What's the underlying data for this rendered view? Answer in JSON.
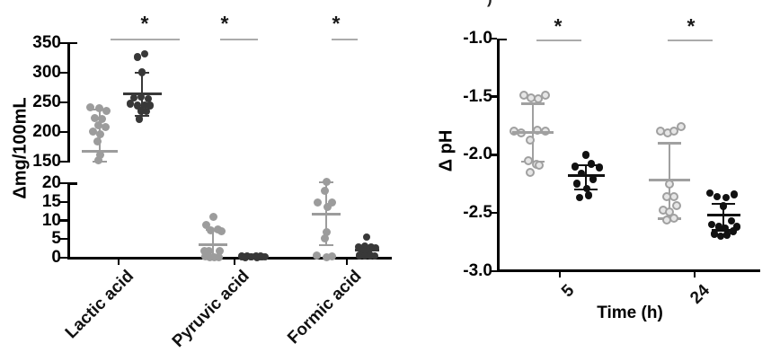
{
  "figure": {
    "cropped_label": ")",
    "background": "#ffffff",
    "axis_color": "#000000",
    "significance_bar_color": "#ababab"
  },
  "chart_data": [
    {
      "id": "organic-acids",
      "type": "scatter",
      "title": "",
      "ylabel": "Δmg/100mL",
      "xlabel": "",
      "y_axis_break": true,
      "y_upper_range": [
        150,
        350
      ],
      "y_lower_range": [
        0,
        20
      ],
      "y_tick_labels_upper": [
        "350",
        "300",
        "250",
        "200",
        "150"
      ],
      "y_tick_labels_lower": [
        "20",
        "15",
        "10",
        "5",
        "0"
      ],
      "categories": [
        "Lactic acid",
        "Pyruvic acid",
        "Formic acid"
      ],
      "grid": false,
      "legend": false,
      "significance": [
        {
          "label": "*",
          "between": "Lactic acid gray vs black"
        },
        {
          "label": "*",
          "between": "Pyruvic acid gray vs black"
        },
        {
          "label": "*",
          "between": "Formic acid gray vs black"
        }
      ],
      "series": [
        {
          "name": "gray-group",
          "color": "#9c9c9c",
          "marker": "filled-circle",
          "groups": [
            {
              "category": "Lactic acid",
              "mean": 168,
              "err_hi": 238,
              "err_lo": 150,
              "points": [
                [
                  -11,
                  242
                ],
                [
                  -1,
                  240
                ],
                [
                  7,
                  236
                ],
                [
                  -6,
                  224
                ],
                [
                  2,
                  222
                ],
                [
                  -2,
                  212
                ],
                [
                  6,
                  209
                ],
                [
                  -8,
                  201
                ],
                [
                  0,
                  197
                ],
                [
                  -3,
                  184
                ],
                [
                  0,
                  162
                ],
                [
                  -2,
                  152
                ]
              ]
            },
            {
              "category": "Pyruvic acid",
              "mean": 3.6,
              "err_hi": 7.4,
              "err_lo": 0.2,
              "points": [
                [
                  0,
                  10.9
                ],
                [
                  -8,
                  8.7
                ],
                [
                  5,
                  7.5
                ],
                [
                  -3,
                  7.3
                ],
                [
                  9,
                  7.2
                ],
                [
                  -10,
                  1.9
                ],
                [
                  7,
                  1.9
                ],
                [
                  -5,
                  1.7
                ],
                [
                  -9,
                  0.3
                ],
                [
                  -4,
                  0.2
                ],
                [
                  1,
                  0.2
                ],
                [
                  6,
                  0.1
                ]
              ]
            },
            {
              "category": "Formic acid",
              "mean": 11.6,
              "err_hi": 20.3,
              "err_lo": 3.3,
              "points": [
                [
                  0,
                  20.4
                ],
                [
                  -2,
                  17.9
                ],
                [
                  -10,
                  14.9
                ],
                [
                  6,
                  14.7
                ],
                [
                  1,
                  13.6
                ],
                [
                  0,
                  6.9
                ],
                [
                  -2,
                  5.1
                ],
                [
                  -11,
                  0.7
                ],
                [
                  6,
                  0.3
                ],
                [
                  0,
                  0.2
                ]
              ]
            }
          ]
        },
        {
          "name": "black-group",
          "color": "#383838",
          "marker": "filled-circle",
          "groups": [
            {
              "category": "Lactic acid",
              "mean": 264,
              "err_hi": 300,
              "err_lo": 228,
              "points": [
                [
                  3,
                  332
                ],
                [
                  -5,
                  327
                ],
                [
                  0,
                  301
                ],
                [
                  -1,
                  259
                ],
                [
                  -9,
                  258
                ],
                [
                  7,
                  256
                ],
                [
                  -13,
                  248
                ],
                [
                  3,
                  246
                ],
                [
                  -5,
                  245
                ],
                [
                  9,
                  245
                ],
                [
                  -1,
                  236
                ],
                [
                  5,
                  235
                ],
                [
                  -3,
                  222
                ]
              ]
            },
            {
              "category": "Pyruvic acid",
              "mean": 0.3,
              "err_hi": 0.55,
              "err_lo": 0.1,
              "points": [
                [
                  -14,
                  0.4
                ],
                [
                  -8,
                  0.5
                ],
                [
                  -3,
                  0.3
                ],
                [
                  2,
                  0.5
                ],
                [
                  7,
                  0.4
                ],
                [
                  12,
                  0.3
                ],
                [
                  -10,
                  0.15
                ],
                [
                  -4,
                  0.2
                ],
                [
                  3,
                  0.15
                ],
                [
                  9,
                  0.2
                ]
              ]
            },
            {
              "category": "Formic acid",
              "mean": 2.0,
              "err_hi": 3.2,
              "err_lo": 0.9,
              "points": [
                [
                  0,
                  5.5
                ],
                [
                  -9,
                  2.9
                ],
                [
                  -2,
                  3.1
                ],
                [
                  5,
                  2.9
                ],
                [
                  10,
                  2.65
                ],
                [
                  -5,
                  1.85
                ],
                [
                  2,
                  1.7
                ],
                [
                  -8,
                  0.65
                ],
                [
                  -2,
                  0.5
                ],
                [
                  4,
                  0.65
                ],
                [
                  9,
                  0.5
                ]
              ]
            }
          ]
        }
      ]
    },
    {
      "id": "delta-ph",
      "type": "scatter",
      "title": "",
      "ylabel": "Δ pH",
      "xlabel": "Time (h)",
      "ylim": [
        -3.0,
        -1.0
      ],
      "y_tick_labels": [
        "-1.0",
        "-1.5",
        "-2.0",
        "-2.5",
        "-3.0"
      ],
      "categories": [
        "5",
        "24"
      ],
      "grid": false,
      "legend": false,
      "significance": [
        {
          "label": "*",
          "between": "5 h gray vs black"
        },
        {
          "label": "*",
          "between": "24 h gray vs black"
        }
      ],
      "series": [
        {
          "name": "gray-group",
          "color": "#a0a0a0",
          "marker": "open-circle",
          "ring_fill": "#e6e6e6",
          "groups": [
            {
              "category": "5",
              "mean": -1.81,
              "err_hi": -1.56,
              "err_lo": -2.06,
              "points": [
                [
                  -10,
                  -1.49
                ],
                [
                  -2,
                  -1.51
                ],
                [
                  6,
                  -1.52
                ],
                [
                  14,
                  -1.49
                ],
                [
                  -21,
                  -1.8
                ],
                [
                  -13,
                  -1.81
                ],
                [
                  5,
                  -1.79
                ],
                [
                  14,
                  -1.8
                ],
                [
                  -3,
                  -1.87
                ],
                [
                  -5,
                  -2.05
                ],
                [
                  4,
                  -2.08
                ],
                [
                  7,
                  -2.09
                ],
                [
                  -3,
                  -2.15
                ]
              ]
            },
            {
              "category": "24",
              "mean": -2.22,
              "err_hi": -1.9,
              "err_lo": -2.55,
              "points": [
                [
                  -10,
                  -1.8
                ],
                [
                  -2,
                  -1.81
                ],
                [
                  5,
                  -1.8
                ],
                [
                  13,
                  -1.76
                ],
                [
                  0,
                  -2.25
                ],
                [
                  -3,
                  -2.36
                ],
                [
                  5,
                  -2.36
                ],
                [
                  8,
                  -2.44
                ],
                [
                  -7,
                  -2.48
                ],
                [
                  0,
                  -2.49
                ],
                [
                  -3,
                  -2.56
                ],
                [
                  5,
                  -2.55
                ]
              ]
            }
          ]
        },
        {
          "name": "black-group",
          "color": "#111111",
          "marker": "filled-circle",
          "groups": [
            {
              "category": "5",
              "mean": -2.18,
              "err_hi": -2.09,
              "err_lo": -2.3,
              "points": [
                [
                  0,
                  -2.0
                ],
                [
                  -12,
                  -2.1
                ],
                [
                  6,
                  -2.08
                ],
                [
                  15,
                  -2.11
                ],
                [
                  -5,
                  -2.16
                ],
                [
                  8,
                  -2.21
                ],
                [
                  -10,
                  -2.25
                ],
                [
                  1,
                  -2.29
                ],
                [
                  -7,
                  -2.37
                ],
                [
                  3,
                  -2.35
                ]
              ]
            },
            {
              "category": "24",
              "mean": -2.52,
              "err_hi": -2.42,
              "err_lo": -2.65,
              "points": [
                [
                  -15,
                  -2.33
                ],
                [
                  -7,
                  -2.36
                ],
                [
                  3,
                  -2.37
                ],
                [
                  12,
                  -2.34
                ],
                [
                  0,
                  -2.44
                ],
                [
                  9,
                  -2.57
                ],
                [
                  -13,
                  -2.6
                ],
                [
                  -5,
                  -2.62
                ],
                [
                  2,
                  -2.63
                ],
                [
                  15,
                  -2.62
                ],
                [
                  -10,
                  -2.68
                ],
                [
                  4,
                  -2.69
                ],
                [
                  11,
                  -2.66
                ],
                [
                  -3,
                  -2.7
                ]
              ]
            }
          ]
        }
      ]
    }
  ]
}
